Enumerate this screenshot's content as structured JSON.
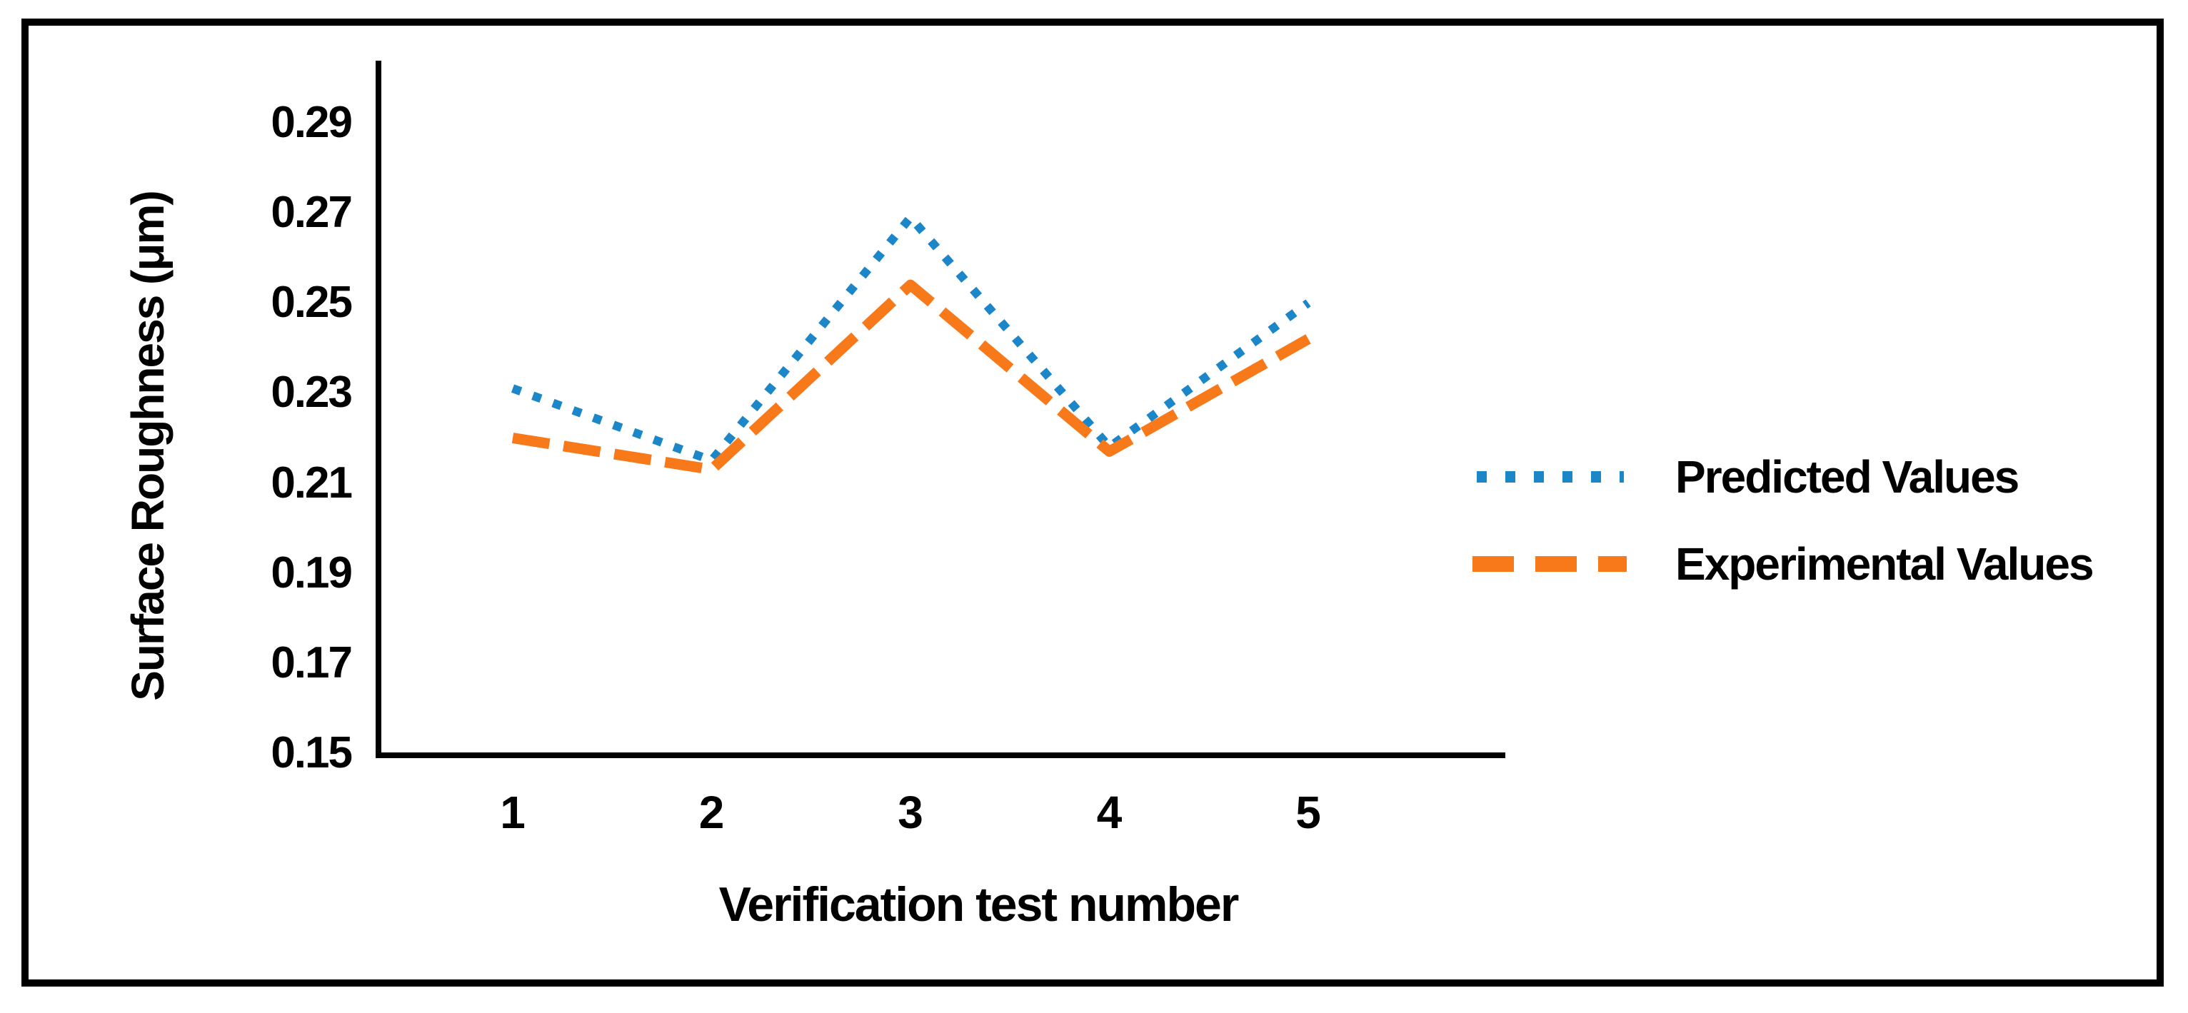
{
  "chart_data": {
    "type": "line",
    "title": "",
    "xlabel": "Verification test number",
    "ylabel": "Surface Roughness (μm)",
    "x": [
      1,
      2,
      3,
      4,
      5
    ],
    "x_ticks": [
      "1",
      "2",
      "3",
      "4",
      "5"
    ],
    "y_ticks": [
      "0.29",
      "0.27",
      "0.25",
      "0.23",
      "0.21",
      "0.19",
      "0.17",
      "0.15"
    ],
    "ylim": [
      0.15,
      0.304
    ],
    "grid": false,
    "legend_position": "right-center",
    "axis_color": "#000000",
    "text_color": "#000000",
    "series": [
      {
        "name": "Predicted Values",
        "style": "dotted",
        "color": "#1B86C8",
        "values": [
          0.231,
          0.215,
          0.269,
          0.218,
          0.25
        ]
      },
      {
        "name": "Experimental Values",
        "style": "dashed",
        "color": "#F8791A",
        "values": [
          0.22,
          0.213,
          0.254,
          0.217,
          0.242
        ]
      }
    ]
  }
}
